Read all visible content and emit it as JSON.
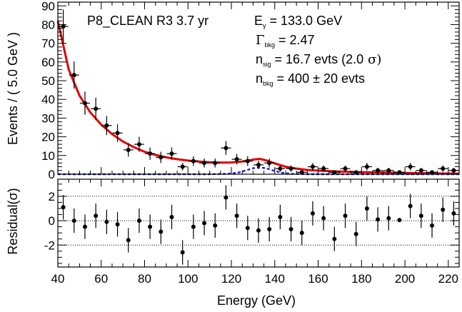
{
  "chart_data": [
    {
      "type": "scatter",
      "role": "main",
      "title": "P8_CLEAN R3 3.7 yr",
      "xlabel": "",
      "ylabel": "Events / ( 5.0 GeV )",
      "xlim": [
        40,
        225
      ],
      "ylim": [
        0,
        92
      ],
      "yticks": [
        0,
        10,
        20,
        30,
        40,
        50,
        60,
        70,
        80,
        90
      ],
      "annotations": {
        "egamma_sym": "E",
        "egamma_sub": "γ",
        "egamma_val": "= 133.0 GeV",
        "gamma_sym": "Γ",
        "gamma_sub": "bkg",
        "gamma_val": "= 2.47",
        "nsig_sym": "n",
        "nsig_sub": "sig",
        "nsig_val": "= 16.7 evts (2.0",
        "nsig_sigma": "σ)",
        "nbkg_sym": "n",
        "nbkg_sub": "bkg",
        "nbkg_val": "= 400 ± 20 evts"
      },
      "x": [
        42.5,
        47.5,
        52.5,
        57.5,
        62.5,
        67.5,
        72.5,
        77.5,
        82.5,
        87.5,
        92.5,
        97.5,
        102.5,
        107.5,
        112.5,
        117.5,
        122.5,
        127.5,
        132.5,
        137.5,
        142.5,
        147.5,
        152.5,
        157.5,
        162.5,
        167.5,
        172.5,
        177.5,
        182.5,
        187.5,
        192.5,
        197.5,
        202.5,
        207.5,
        212.5,
        217.5,
        222.5
      ],
      "y": [
        79,
        53,
        38,
        35,
        26,
        22,
        13,
        16,
        11,
        9,
        11,
        4,
        7,
        6,
        6,
        14,
        8,
        7,
        5,
        6,
        3,
        3,
        1,
        4,
        3,
        1,
        3,
        1,
        4,
        2,
        2,
        1,
        4,
        2,
        1,
        3,
        2
      ],
      "yerr": [
        9,
        7.3,
        6.2,
        5.9,
        5.1,
        4.7,
        3.6,
        4,
        3.3,
        3,
        3.3,
        2,
        2.6,
        2.4,
        2.4,
        3.7,
        2.8,
        2.6,
        2.2,
        2.4,
        1.7,
        1.7,
        1,
        2,
        1.7,
        1,
        1.7,
        1,
        2,
        1.4,
        1.4,
        1,
        2,
        1.4,
        1,
        1.7,
        1.4
      ],
      "series": [
        {
          "name": "",
          "color": "#e00000",
          "style": "solid",
          "x": [
            40,
            45,
            50,
            55,
            60,
            65,
            70,
            75,
            80,
            85,
            90,
            95,
            100,
            105,
            110,
            115,
            120,
            125,
            130,
            133,
            136,
            140,
            145,
            150,
            155,
            160,
            170,
            180,
            190,
            200,
            210,
            225
          ],
          "y": [
            82,
            56,
            42,
            33,
            26.5,
            21.5,
            17.5,
            14.5,
            12,
            10.3,
            9,
            8,
            7.3,
            6.8,
            6.4,
            6.2,
            6.3,
            6.8,
            7.8,
            8.2,
            7.4,
            5.8,
            4,
            3,
            2.3,
            1.9,
            1.4,
            1.1,
            0.9,
            0.7,
            0.5,
            0.3
          ]
        },
        {
          "name": "",
          "color": "#1f1fd0",
          "style": "dashed",
          "x": [
            40,
            110,
            118,
            123,
            127,
            130,
            133,
            136,
            139,
            143,
            148,
            155,
            225
          ],
          "y": [
            0,
            0,
            0.2,
            0.8,
            2.1,
            3.2,
            3.6,
            3.2,
            2.1,
            0.8,
            0.2,
            0,
            0
          ]
        }
      ]
    },
    {
      "type": "scatter",
      "role": "residual",
      "xlabel": "Energy (GeV)",
      "ylabel": "Residual(σ)",
      "xlim": [
        40,
        225
      ],
      "ylim": [
        -3.8,
        3.4
      ],
      "yticks": [
        -2,
        0,
        2
      ],
      "yticklabels": [
        "-2",
        "0",
        "2"
      ],
      "xticks": [
        40,
        60,
        80,
        100,
        120,
        140,
        160,
        180,
        200,
        220
      ],
      "gridlines_y": [
        -2,
        0,
        2
      ],
      "x": [
        42.5,
        47.5,
        52.5,
        57.5,
        62.5,
        67.5,
        72.5,
        77.5,
        82.5,
        87.5,
        92.5,
        97.5,
        102.5,
        107.5,
        112.5,
        117.5,
        122.5,
        127.5,
        132.5,
        137.5,
        142.5,
        147.5,
        152.5,
        157.5,
        162.5,
        167.5,
        172.5,
        177.5,
        182.5,
        187.5,
        192.5,
        197.5,
        202.5,
        207.5,
        212.5,
        217.5,
        222.5
      ],
      "y": [
        1.1,
        0,
        -0.5,
        0.4,
        -0.1,
        -0.3,
        -1.6,
        0,
        -0.5,
        -0.9,
        0.3,
        -2.6,
        -0.5,
        -0.2,
        -0.4,
        1.9,
        0.4,
        -0.6,
        -0.8,
        -0.7,
        0.3,
        -0.7,
        -1,
        0.6,
        0.2,
        -1.5,
        0.4,
        -1.1,
        1,
        0.1,
        0.2,
        0.05,
        1.2,
        0.4,
        -0.4,
        0.9,
        0.6
      ],
      "yerr": [
        1,
        1,
        1,
        1,
        1,
        1,
        1,
        1,
        1,
        1,
        1,
        1,
        1,
        1,
        1,
        1,
        1,
        1,
        1,
        1,
        1,
        1,
        1,
        1,
        1,
        1,
        1,
        1,
        1,
        1,
        1,
        0,
        1,
        1,
        1,
        1,
        1
      ]
    }
  ]
}
